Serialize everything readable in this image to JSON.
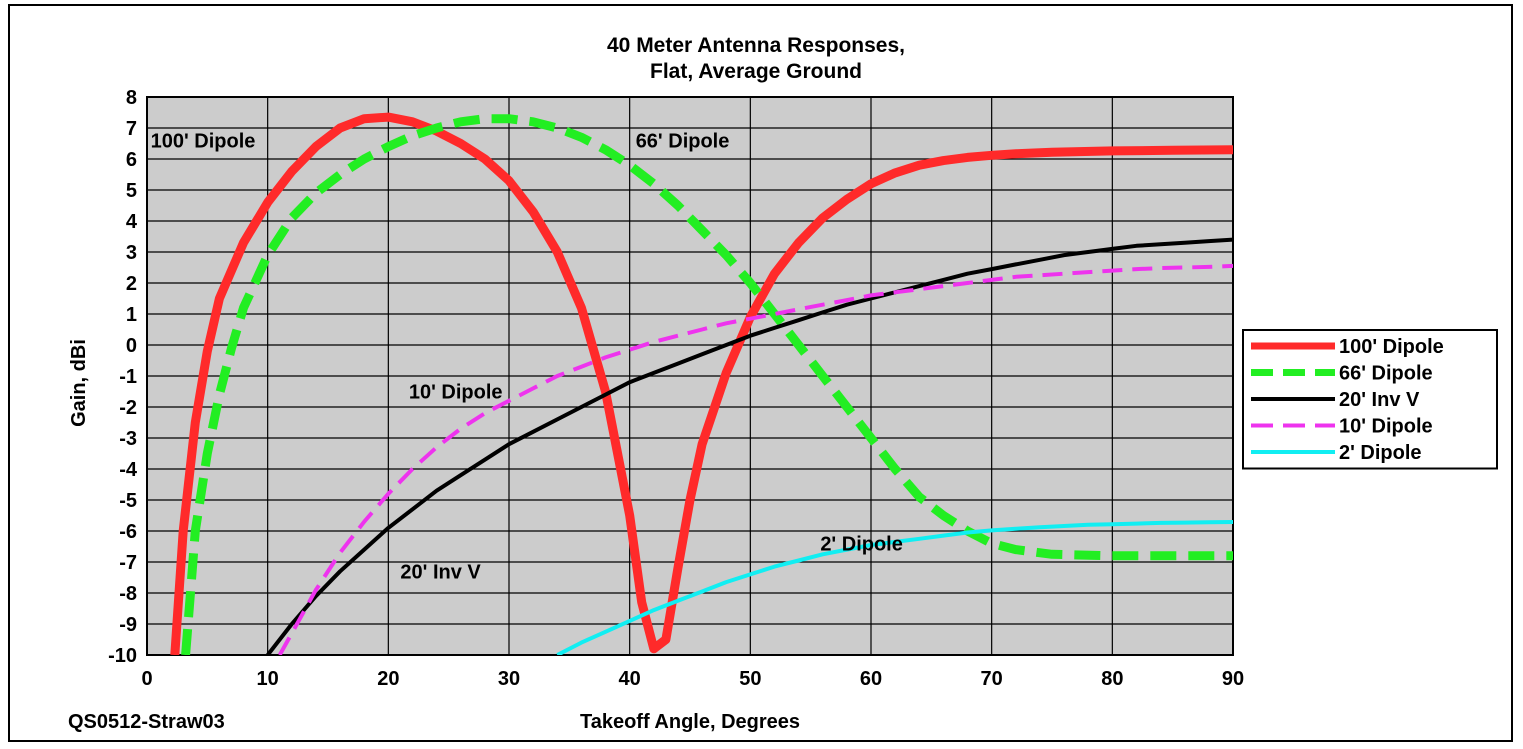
{
  "chart_data": {
    "type": "line",
    "title": "40 Meter Antenna Responses,",
    "subtitle": "Flat, Average Ground",
    "xlabel": "Takeoff Angle, Degrees",
    "ylabel": "Gain, dBi",
    "xlim": [
      0,
      90
    ],
    "ylim": [
      -10,
      8
    ],
    "x_ticks": [
      "0",
      "10",
      "20",
      "30",
      "40",
      "50",
      "60",
      "70",
      "80",
      "90"
    ],
    "y_ticks": [
      "8",
      "7",
      "6",
      "5",
      "4",
      "3",
      "2",
      "1",
      "0",
      "-1",
      "-2",
      "-3",
      "-4",
      "-5",
      "-6",
      "-7",
      "-8",
      "-9",
      "-10"
    ],
    "grid": true,
    "legend_position": "right",
    "footnote": "QS0512-Straw03",
    "series": [
      {
        "name": "100' Dipole",
        "color": "#ff2a2a",
        "dash": "solid",
        "width": "thick",
        "points": [
          [
            2.3,
            -10
          ],
          [
            3,
            -6
          ],
          [
            4,
            -2.5
          ],
          [
            5,
            -0.2
          ],
          [
            6,
            1.5
          ],
          [
            8,
            3.3
          ],
          [
            10,
            4.6
          ],
          [
            12,
            5.6
          ],
          [
            14,
            6.4
          ],
          [
            16,
            7.0
          ],
          [
            18,
            7.3
          ],
          [
            20,
            7.35
          ],
          [
            22,
            7.2
          ],
          [
            24,
            6.9
          ],
          [
            26,
            6.5
          ],
          [
            28,
            6.0
          ],
          [
            30,
            5.3
          ],
          [
            32,
            4.3
          ],
          [
            34,
            3.0
          ],
          [
            36,
            1.2
          ],
          [
            38,
            -1.5
          ],
          [
            40,
            -5.5
          ],
          [
            41,
            -8.3
          ],
          [
            42,
            -9.8
          ],
          [
            43,
            -9.5
          ],
          [
            44,
            -7.2
          ],
          [
            45,
            -5.0
          ],
          [
            46,
            -3.2
          ],
          [
            48,
            -0.9
          ],
          [
            50,
            0.9
          ],
          [
            52,
            2.3
          ],
          [
            54,
            3.3
          ],
          [
            56,
            4.1
          ],
          [
            58,
            4.7
          ],
          [
            60,
            5.2
          ],
          [
            62,
            5.55
          ],
          [
            64,
            5.8
          ],
          [
            66,
            5.95
          ],
          [
            68,
            6.05
          ],
          [
            70,
            6.12
          ],
          [
            72,
            6.17
          ],
          [
            75,
            6.22
          ],
          [
            80,
            6.26
          ],
          [
            85,
            6.28
          ],
          [
            90,
            6.3
          ]
        ]
      },
      {
        "name": "66' Dipole",
        "color": "#22ee22",
        "dash": "dashed",
        "width": "thick",
        "points": [
          [
            3.2,
            -10
          ],
          [
            4,
            -6
          ],
          [
            5,
            -3.5
          ],
          [
            6,
            -1.6
          ],
          [
            7,
            -0.1
          ],
          [
            8,
            1.2
          ],
          [
            10,
            2.9
          ],
          [
            12,
            4.1
          ],
          [
            14,
            4.9
          ],
          [
            16,
            5.5
          ],
          [
            18,
            6.0
          ],
          [
            20,
            6.4
          ],
          [
            22,
            6.75
          ],
          [
            24,
            7.0
          ],
          [
            26,
            7.2
          ],
          [
            28,
            7.3
          ],
          [
            30,
            7.3
          ],
          [
            32,
            7.2
          ],
          [
            34,
            7.0
          ],
          [
            36,
            6.7
          ],
          [
            38,
            6.3
          ],
          [
            40,
            5.8
          ],
          [
            42,
            5.2
          ],
          [
            44,
            4.5
          ],
          [
            46,
            3.7
          ],
          [
            48,
            2.9
          ],
          [
            50,
            2.0
          ],
          [
            52,
            1.0
          ],
          [
            54,
            0
          ],
          [
            56,
            -1.0
          ],
          [
            58,
            -2.0
          ],
          [
            60,
            -3.0
          ],
          [
            62,
            -4.0
          ],
          [
            64,
            -4.9
          ],
          [
            66,
            -5.5
          ],
          [
            68,
            -6.0
          ],
          [
            70,
            -6.4
          ],
          [
            72,
            -6.6
          ],
          [
            75,
            -6.75
          ],
          [
            80,
            -6.8
          ],
          [
            85,
            -6.8
          ],
          [
            90,
            -6.8
          ]
        ]
      },
      {
        "name": "20' Inv V",
        "color": "#000000",
        "dash": "solid",
        "width": "medium",
        "points": [
          [
            10,
            -10
          ],
          [
            12,
            -9
          ],
          [
            14,
            -8.1
          ],
          [
            16,
            -7.3
          ],
          [
            18,
            -6.6
          ],
          [
            20,
            -5.9
          ],
          [
            22,
            -5.3
          ],
          [
            24,
            -4.7
          ],
          [
            26,
            -4.2
          ],
          [
            28,
            -3.7
          ],
          [
            30,
            -3.2
          ],
          [
            32,
            -2.8
          ],
          [
            34,
            -2.4
          ],
          [
            36,
            -2.0
          ],
          [
            38,
            -1.6
          ],
          [
            40,
            -1.2
          ],
          [
            42,
            -0.9
          ],
          [
            44,
            -0.6
          ],
          [
            46,
            -0.3
          ],
          [
            48,
            0
          ],
          [
            50,
            0.3
          ],
          [
            52,
            0.55
          ],
          [
            54,
            0.8
          ],
          [
            56,
            1.05
          ],
          [
            58,
            1.3
          ],
          [
            60,
            1.5
          ],
          [
            62,
            1.7
          ],
          [
            64,
            1.9
          ],
          [
            66,
            2.1
          ],
          [
            68,
            2.3
          ],
          [
            70,
            2.45
          ],
          [
            72,
            2.6
          ],
          [
            74,
            2.75
          ],
          [
            76,
            2.9
          ],
          [
            78,
            3.0
          ],
          [
            80,
            3.1
          ],
          [
            82,
            3.2
          ],
          [
            84,
            3.25
          ],
          [
            86,
            3.3
          ],
          [
            88,
            3.35
          ],
          [
            90,
            3.4
          ]
        ]
      },
      {
        "name": "10' Dipole",
        "color": "#ee33ee",
        "dash": "dashed",
        "width": "medium",
        "points": [
          [
            11,
            -10
          ],
          [
            12,
            -9.3
          ],
          [
            14,
            -7.9
          ],
          [
            16,
            -6.7
          ],
          [
            18,
            -5.7
          ],
          [
            20,
            -4.8
          ],
          [
            22,
            -4.0
          ],
          [
            24,
            -3.3
          ],
          [
            26,
            -2.7
          ],
          [
            28,
            -2.2
          ],
          [
            30,
            -1.8
          ],
          [
            32,
            -1.4
          ],
          [
            34,
            -1.0
          ],
          [
            36,
            -0.7
          ],
          [
            38,
            -0.4
          ],
          [
            40,
            -0.15
          ],
          [
            42,
            0.1
          ],
          [
            44,
            0.3
          ],
          [
            46,
            0.5
          ],
          [
            48,
            0.7
          ],
          [
            50,
            0.85
          ],
          [
            52,
            1.0
          ],
          [
            54,
            1.15
          ],
          [
            56,
            1.3
          ],
          [
            58,
            1.45
          ],
          [
            60,
            1.6
          ],
          [
            62,
            1.7
          ],
          [
            64,
            1.8
          ],
          [
            66,
            1.9
          ],
          [
            68,
            2.0
          ],
          [
            70,
            2.1
          ],
          [
            72,
            2.2
          ],
          [
            74,
            2.25
          ],
          [
            76,
            2.3
          ],
          [
            78,
            2.35
          ],
          [
            80,
            2.4
          ],
          [
            82,
            2.45
          ],
          [
            84,
            2.48
          ],
          [
            86,
            2.5
          ],
          [
            88,
            2.52
          ],
          [
            90,
            2.55
          ]
        ]
      },
      {
        "name": "2' Dipole",
        "color": "#11eef2",
        "dash": "solid",
        "width": "medium",
        "points": [
          [
            34,
            -10
          ],
          [
            36,
            -9.6
          ],
          [
            38,
            -9.25
          ],
          [
            40,
            -8.9
          ],
          [
            42,
            -8.55
          ],
          [
            44,
            -8.25
          ],
          [
            46,
            -7.95
          ],
          [
            48,
            -7.65
          ],
          [
            50,
            -7.4
          ],
          [
            52,
            -7.15
          ],
          [
            54,
            -6.95
          ],
          [
            56,
            -6.75
          ],
          [
            58,
            -6.6
          ],
          [
            60,
            -6.45
          ],
          [
            62,
            -6.35
          ],
          [
            64,
            -6.25
          ],
          [
            66,
            -6.15
          ],
          [
            68,
            -6.05
          ],
          [
            70,
            -5.98
          ],
          [
            72,
            -5.93
          ],
          [
            74,
            -5.88
          ],
          [
            76,
            -5.84
          ],
          [
            78,
            -5.8
          ],
          [
            80,
            -5.78
          ],
          [
            82,
            -5.76
          ],
          [
            84,
            -5.74
          ],
          [
            86,
            -5.73
          ],
          [
            88,
            -5.72
          ],
          [
            90,
            -5.71
          ]
        ]
      }
    ],
    "annotations": [
      {
        "text": "100' Dipole",
        "x": 0.3,
        "y": 6.6
      },
      {
        "text": "66' Dipole",
        "x": 40.5,
        "y": 6.6
      },
      {
        "text": "10' Dipole",
        "x": 21.7,
        "y": -1.5
      },
      {
        "text": "20' Inv V",
        "x": 21,
        "y": -7.3
      },
      {
        "text": "2' Dipole",
        "x": 55.8,
        "y": -6.4
      }
    ]
  }
}
